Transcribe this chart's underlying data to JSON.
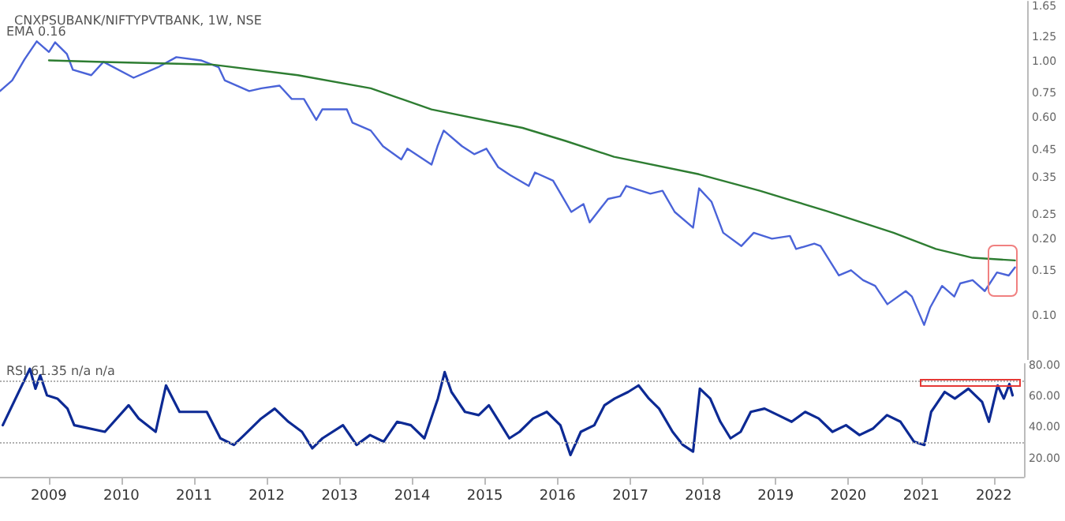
{
  "chart_data": [
    {
      "type": "line",
      "title": "CNXPSUBANK/NIFTYPVTBANK, 1W, NSE",
      "annotations": [
        "EMA 0.16"
      ],
      "log": "y",
      "grid": false,
      "marker": "none",
      "tick_labels": "y",
      "xlim": [
        "2008-05",
        "2022-06"
      ],
      "ylim": [
        0.067,
        1.72
      ],
      "yticks": [
        {
          "value": 0.1,
          "label": "0.10"
        },
        0.15,
        {
          "value": 0.2,
          "label": "0.20"
        },
        0.25,
        0.35,
        0.45,
        {
          "value": 0.6,
          "label": "0.60"
        },
        0.75,
        {
          "value": 1,
          "label": "1.00"
        },
        1.25,
        1.65
      ],
      "series": [
        {
          "color": "#4a63d8",
          "x": [
            "2008-05",
            "2008-07",
            "2008-09",
            "2008-11",
            "2009-01",
            "2009-02",
            "2009-04",
            "2009-05",
            "2009-08",
            "2009-10",
            "2010-03",
            "2010-07",
            "2010-10",
            "2011-02",
            "2011-05",
            "2011-06",
            "2011-10",
            "2011-12",
            "2012-03",
            "2012-05",
            "2012-07",
            "2012-09",
            "2012-10",
            "2013-02",
            "2013-03",
            "2013-06",
            "2013-08",
            "2013-11",
            "2013-12",
            "2014-04",
            "2014-05",
            "2014-06",
            "2014-09",
            "2014-11",
            "2015-01",
            "2015-03",
            "2015-05",
            "2015-08",
            "2015-09",
            "2015-12",
            "2016-03",
            "2016-05",
            "2016-06",
            "2016-09",
            "2016-11",
            "2016-12",
            "2017-04",
            "2017-06",
            "2017-08",
            "2017-11",
            "2017-12",
            "2018-02",
            "2018-04",
            "2018-07",
            "2018-09",
            "2018-12",
            "2019-03",
            "2019-04",
            "2019-07",
            "2019-08",
            "2019-11",
            "2020-01",
            "2020-03",
            "2020-05",
            "2020-07",
            "2020-10",
            "2020-11",
            "2021-01",
            "2021-02",
            "2021-04",
            "2021-06",
            "2021-07",
            "2021-09",
            "2021-11",
            "2022-01",
            "2022-03",
            "2022-04"
          ],
          "values": [
            0.765,
            0.842,
            1.02,
            1.2,
            1.09,
            1.19,
            1.07,
            0.927,
            0.883,
            0.996,
            0.863,
            0.949,
            1.04,
            1.01,
            0.949,
            0.842,
            0.765,
            0.784,
            0.803,
            0.712,
            0.712,
            0.589,
            0.648,
            0.648,
            0.575,
            0.535,
            0.464,
            0.412,
            0.454,
            0.393,
            0.464,
            0.535,
            0.464,
            0.432,
            0.454,
            0.384,
            0.357,
            0.324,
            0.366,
            0.34,
            0.256,
            0.275,
            0.233,
            0.288,
            0.295,
            0.324,
            0.302,
            0.31,
            0.256,
            0.222,
            0.317,
            0.281,
            0.212,
            0.188,
            0.212,
            0.201,
            0.206,
            0.183,
            0.192,
            0.188,
            0.144,
            0.151,
            0.138,
            0.131,
            0.111,
            0.125,
            0.119,
            0.092,
            0.108,
            0.131,
            0.119,
            0.134,
            0.138,
            0.125,
            0.148,
            0.144,
            0.155
          ]
        },
        {
          "color": "#2e7d32",
          "x": [
            "2009-01",
            "2009-10",
            "2011-04",
            "2012-06",
            "2013-06",
            "2014-04",
            "2015-07",
            "2016-02",
            "2016-10",
            "2017-12",
            "2018-10",
            "2019-09",
            "2020-08",
            "2021-03",
            "2021-09",
            "2022-04"
          ],
          "values": [
            1.01,
            0.996,
            0.972,
            0.883,
            0.784,
            0.648,
            0.548,
            0.487,
            0.422,
            0.36,
            0.31,
            0.258,
            0.212,
            0.183,
            0.169,
            0.165
          ]
        }
      ]
    },
    {
      "type": "line",
      "annotations": [
        "RSI 61.35 n/a n/a"
      ],
      "grid": false,
      "marker": "none",
      "xlim": [
        "2008-05",
        "2022-06"
      ],
      "ylim": [
        8,
        81
      ],
      "xticks": [
        "2009",
        "2010",
        "2011",
        "2012",
        "2013",
        "2014",
        "2015",
        "2016",
        "2017",
        "2018",
        "2019",
        "2020",
        "2021",
        "2022"
      ],
      "yticks": [
        {
          "value": 20,
          "label": "20.00"
        },
        {
          "value": 40,
          "label": "40.00"
        },
        {
          "value": 60,
          "label": "60.00"
        },
        {
          "value": 80,
          "label": "80.00"
        }
      ],
      "ref_lines": [
        {
          "axis": "y",
          "value": 70,
          "color": "#b0b0b0",
          "line_style": "dotted"
        },
        {
          "axis": "y",
          "value": 30,
          "color": "#b0b0b0",
          "line_style": "dotted"
        }
      ],
      "series": [
        {
          "color": "#0d2a94",
          "x": [
            "2008-05-15",
            "2008-09-28",
            "2008-10-26",
            "2008-11-19",
            "2008-12-23",
            "2009-02-13",
            "2009-04-05",
            "2009-05-09",
            "2009-10-10",
            "2010-02-06",
            "2010-03-29",
            "2010-06-22",
            "2010-08-13",
            "2010-10-20",
            "2011-03-06",
            "2011-05-13",
            "2011-07-20",
            "2011-09-10",
            "2011-12-04",
            "2012-02-10",
            "2012-04-19",
            "2012-06-26",
            "2012-08-17",
            "2012-10-07",
            "2013-01-18",
            "2013-03-27",
            "2013-06-03",
            "2013-08-10",
            "2013-10-17",
            "2013-12-25",
            "2014-03-03",
            "2014-05-10",
            "2014-06-13",
            "2014-07-17",
            "2014-09-23",
            "2014-12-01",
            "2015-01-21",
            "2015-03-14",
            "2015-05-04",
            "2015-06-24",
            "2015-08-31",
            "2015-11-08",
            "2016-01-15",
            "2016-03-06",
            "2016-04-27",
            "2016-07-04",
            "2016-08-24",
            "2016-10-14",
            "2016-12-21",
            "2017-02-11",
            "2017-04-04",
            "2017-05-25",
            "2017-08-01",
            "2017-09-22",
            "2017-11-12",
            "2017-12-16",
            "2018-02-06",
            "2018-03-29",
            "2018-05-19",
            "2018-07-09",
            "2018-08-29",
            "2018-11-06",
            "2019-01-13",
            "2019-03-22",
            "2019-05-29",
            "2019-08-05",
            "2019-10-13",
            "2019-12-20",
            "2020-02-26",
            "2020-05-05",
            "2020-07-13",
            "2020-09-19",
            "2020-11-26",
            "2021-01-17",
            "2021-02-20",
            "2021-04-29",
            "2021-06-19",
            "2021-08-26",
            "2021-11-03",
            "2021-12-07",
            "2022-01-20",
            "2022-02-20",
            "2022-03-20",
            "2022-04-05"
          ],
          "values": [
            41.4,
            77.9,
            65,
            73.6,
            60.7,
            58.6,
            52.1,
            41.4,
            37.1,
            54.3,
            45.7,
            37.1,
            67.1,
            50,
            50,
            32.9,
            28.6,
            35,
            45.7,
            52.1,
            43.6,
            37.1,
            26.4,
            32.9,
            41.4,
            28.6,
            35,
            30.7,
            43.6,
            41.4,
            32.9,
            58.6,
            75.7,
            62.9,
            50,
            47.9,
            54.3,
            43.6,
            32.9,
            37.1,
            45.7,
            50,
            41.4,
            22.1,
            37.1,
            41.4,
            54.3,
            58.6,
            62.9,
            67.1,
            58.6,
            52.1,
            37.1,
            28.6,
            24.3,
            65,
            58.6,
            43.6,
            32.9,
            37.1,
            50,
            52.1,
            47.9,
            43.6,
            50,
            45.7,
            37.1,
            41.4,
            35,
            39.3,
            47.9,
            43.6,
            30.7,
            28.6,
            50,
            62.9,
            58.6,
            65,
            56.4,
            43.6,
            67.1,
            58.6,
            68,
            60.7
          ]
        }
      ]
    }
  ]
}
